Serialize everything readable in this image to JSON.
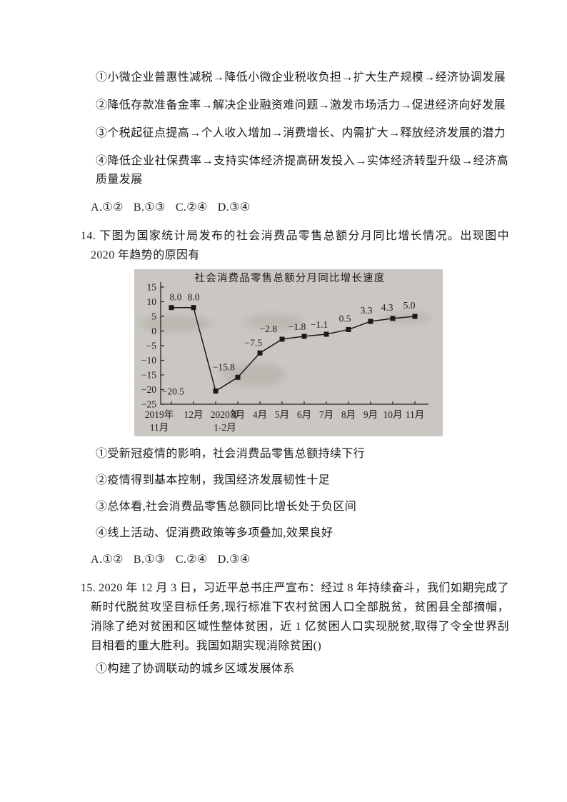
{
  "q13": {
    "items": [
      "①小微企业普惠性减税→降低小微企业税收负担→扩大生产规模→经济协调发展",
      "②降低存款准备金率→解决企业融资难问题→激发市场活力→促进经济向好发展",
      "③个税起征点提高→个人收入增加→消费增长、内需扩大→释放经济发展的潜力",
      "④降低企业社保费率→支持实体经济提高研发投入→实体经济转型升级→经济高质量发展"
    ],
    "options": [
      "A.①②",
      "B.①③",
      "C.②④",
      "D.③④"
    ]
  },
  "q14": {
    "number": "14.",
    "text": "下图为国家统计局发布的社会消费品零售总额分月同比增长情况。出现图中 2020 年趋势的原因有",
    "items": [
      "①受新冠疫情的影响，社会消费品零售总额持续下行",
      "②疫情得到基本控制，我国经济发展韧性十足",
      "③总体看,社会消费品零售总额同比增长处于负区间",
      "④线上活动、促消费政策等多项叠加,效果良好"
    ],
    "options": [
      "A.①②",
      "B.①③",
      "C.②④",
      "D.③④"
    ]
  },
  "chart_data": {
    "type": "line",
    "title": "社会消费品零售总额分月同比增长速度",
    "categories": [
      [
        "2019年",
        "11月"
      ],
      [
        "12月"
      ],
      [
        "2020年",
        "1-2月"
      ],
      [
        "3月"
      ],
      [
        "4月"
      ],
      [
        "5月"
      ],
      [
        "6月"
      ],
      [
        "7月"
      ],
      [
        "8月"
      ],
      [
        "9月"
      ],
      [
        "10月"
      ],
      [
        "11月"
      ]
    ],
    "values": [
      8.0,
      8.0,
      -20.5,
      -15.8,
      -7.5,
      -2.8,
      -1.8,
      -1.1,
      0.5,
      3.3,
      4.3,
      5.0
    ],
    "ylim": [
      -25,
      15
    ],
    "yticks": [
      15,
      10,
      5,
      0,
      -5,
      -10,
      -15,
      -20,
      -25
    ],
    "grid": false,
    "legend": "none",
    "bg_color": "#cac7c2",
    "line_color": "#1a1a1a",
    "marker": "square"
  },
  "q15": {
    "number": "15.",
    "text": "2020 年 12 月 3 日，习近平总书庄严宣布：经过 8 年持续奋斗，我们如期完成了新时代脱贫攻坚目标任务,现行标准下农村贫困人口全部脱贫，贫困县全部摘帽，消除了绝对贫困和区域性整体贫困，近 1 亿贫困人口实现脱贫,取得了令全世界刮目相看的重大胜利。我国如期实现消除贫困()",
    "items": [
      "①构建了协调联动的城乡区域发展体系"
    ]
  }
}
